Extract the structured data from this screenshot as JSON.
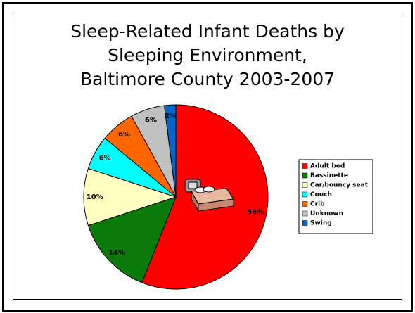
{
  "chart_data": {
    "type": "pie",
    "title": "Sleep-Related Infant Deaths by\nSleeping Environment,\nBaltimore County 2003-2007",
    "categories": [
      "Adult bed",
      "Bassinette",
      "Car/bouncy seat",
      "Couch",
      "Crib",
      "Unknown",
      "Swing"
    ],
    "values": [
      56,
      14,
      10,
      6,
      6,
      6,
      2
    ],
    "value_labels": [
      "56%",
      "14%",
      "10%",
      "6%",
      "6%",
      "6%",
      "2%"
    ],
    "colors": [
      "#ff0000",
      "#0a7a0a",
      "#ffffc0",
      "#00ffff",
      "#ff6600",
      "#c0c0c0",
      "#0066cc"
    ]
  }
}
